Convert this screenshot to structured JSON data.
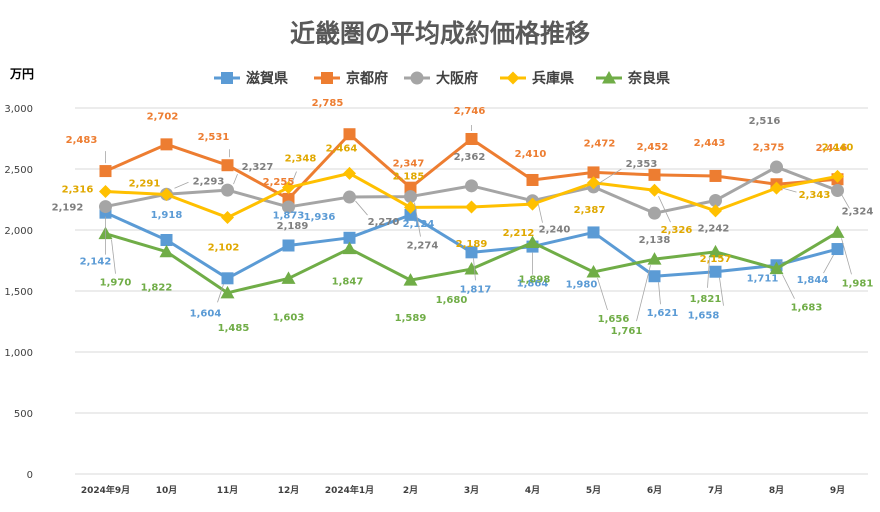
{
  "chart_data": {
    "type": "line",
    "title": "近畿圏の平均成約価格推移",
    "ylabel": "万円",
    "xlabel": "",
    "ylim": [
      0,
      3000
    ],
    "yticks": [
      "0",
      "500",
      "1,000",
      "1,500",
      "2,000",
      "2,500",
      "3,000"
    ],
    "ytick_values": [
      0,
      500,
      1000,
      1500,
      2000,
      2500,
      3000
    ],
    "categories": [
      "2024年9月",
      "10月",
      "11月",
      "12月",
      "2024年1月",
      "2月",
      "3月",
      "4月",
      "5月",
      "6月",
      "7月",
      "8月",
      "9月"
    ],
    "grid": true,
    "legend_position": "top",
    "series": [
      {
        "name": "滋賀県",
        "color": "#5b9bd5",
        "marker": "square",
        "values": [
          2142,
          1918,
          1604,
          1873,
          1936,
          2124,
          1817,
          1864,
          1980,
          1621,
          1658,
          1711,
          1844
        ],
        "labels": [
          "2,142",
          "1,918",
          "1,604",
          "1,873",
          "1,936",
          "2,124",
          "1,817",
          "1,864",
          "1,980",
          "1,621",
          "1,658",
          "1,711",
          "1,844"
        ]
      },
      {
        "name": "京都府",
        "color": "#ed7d31",
        "marker": "square",
        "values": [
          2483,
          2702,
          2531,
          2255,
          2785,
          2347,
          2746,
          2410,
          2472,
          2452,
          2443,
          2375,
          2416
        ],
        "labels": [
          "2,483",
          "2,702",
          "2,531",
          "2,255",
          "2,785",
          "2,347",
          "2,746",
          "2,410",
          "2,472",
          "2,452",
          "2,443",
          "2,375",
          "2,416"
        ]
      },
      {
        "name": "大阪府",
        "color": "#a5a5a5",
        "marker": "circle",
        "values": [
          2192,
          2293,
          2327,
          2189,
          2270,
          2274,
          2362,
          2240,
          2353,
          2138,
          2242,
          2516,
          2324
        ],
        "labels": [
          "2,192",
          "2,293",
          "2,327",
          "2,189",
          "2,270",
          "2,274",
          "2,362",
          "2,240",
          "2,353",
          "2,138",
          "2,242",
          "2,516",
          "2,324"
        ]
      },
      {
        "name": "兵庫県",
        "color": "#ffc000",
        "marker": "diamond",
        "values": [
          2316,
          2291,
          2102,
          2348,
          2464,
          2185,
          2189,
          2212,
          2387,
          2326,
          2157,
          2343,
          2440
        ],
        "labels": [
          "2,316",
          "2,291",
          "2,102",
          "2,348",
          "2,464",
          "2,185",
          "2,189",
          "2,212",
          "2,387",
          "2,326",
          "2,157",
          "2,343",
          "2,440"
        ]
      },
      {
        "name": "奈良県",
        "color": "#70ad47",
        "marker": "triangle",
        "values": [
          1970,
          1822,
          1485,
          1603,
          1847,
          1589,
          1680,
          1898,
          1656,
          1761,
          1821,
          1683,
          1981
        ],
        "labels": [
          "1,970",
          "1,822",
          "1,485",
          "1,603",
          "1,847",
          "1,589",
          "1,680",
          "1,898",
          "1,656",
          "1,761",
          "1,821",
          "1,683",
          "1,981"
        ]
      }
    ]
  }
}
